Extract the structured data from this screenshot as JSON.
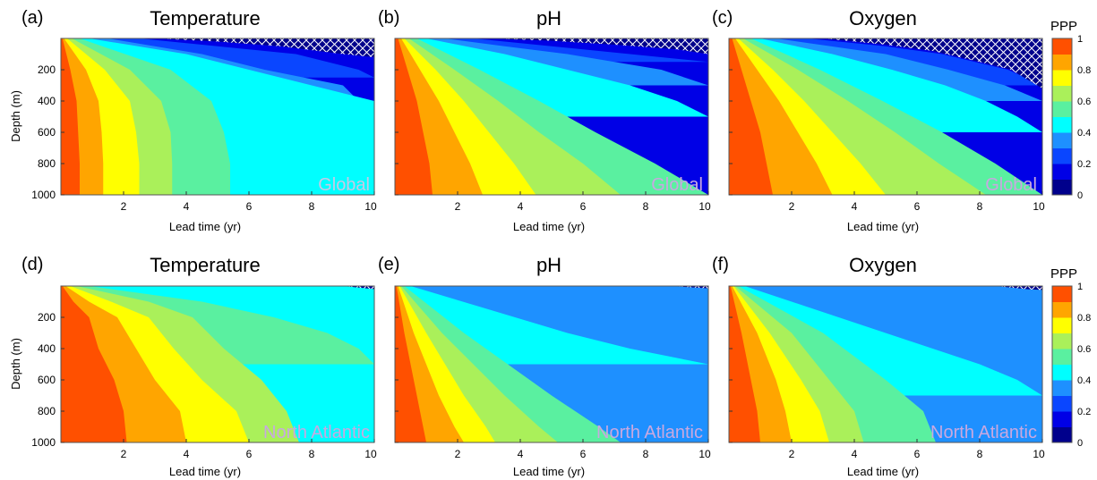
{
  "figure": {
    "colorbar": {
      "label": "PPP",
      "ticks": [
        "1",
        "0.8",
        "0.6",
        "0.4",
        "0.2",
        "0"
      ],
      "levels": [
        0,
        0.1,
        0.2,
        0.3,
        0.4,
        0.5,
        0.6,
        0.7,
        0.8,
        0.9,
        1.0
      ],
      "colors": [
        "#00008c",
        "#0000e6",
        "#0a46ff",
        "#1e90ff",
        "#00ffff",
        "#5af0a0",
        "#aaf05a",
        "#ffff00",
        "#ffa500",
        "#ff5000"
      ],
      "hatch_color": "#ffffff",
      "hatch_bg": "#00008c"
    },
    "xlabel": "Lead time (yr)",
    "ylabel": "Depth (m)",
    "xticks": [
      "2",
      "4",
      "6",
      "8",
      "10"
    ],
    "yticks": [
      "200",
      "400",
      "600",
      "800",
      "1000"
    ]
  },
  "chart_data": [
    {
      "type": "heatmap",
      "panel": "(a)",
      "title": "Temperature",
      "region": "Global",
      "xlabel": "Lead time (yr)",
      "ylabel": "Depth (m)",
      "xlim": [
        0,
        10
      ],
      "ylim": [
        1000,
        0
      ],
      "contour_boundaries": [
        {
          "level": 0.9,
          "depth": [
            0,
            200,
            400,
            600,
            800,
            1000
          ],
          "lead_time": [
            0.05,
            0.3,
            0.5,
            0.55,
            0.6,
            0.6
          ]
        },
        {
          "level": 0.8,
          "depth": [
            0,
            200,
            400,
            600,
            800,
            1000
          ],
          "lead_time": [
            0.1,
            0.8,
            1.2,
            1.3,
            1.35,
            1.35
          ]
        },
        {
          "level": 0.7,
          "depth": [
            0,
            200,
            400,
            600,
            800,
            1000
          ],
          "lead_time": [
            0.2,
            1.4,
            2.2,
            2.4,
            2.5,
            2.5
          ]
        },
        {
          "level": 0.6,
          "depth": [
            0,
            200,
            400,
            600,
            800,
            1000
          ],
          "lead_time": [
            0.35,
            2.2,
            3.2,
            3.5,
            3.55,
            3.55
          ]
        },
        {
          "level": 0.5,
          "depth": [
            0,
            200,
            400,
            600,
            800,
            1000
          ],
          "lead_time": [
            0.6,
            3.5,
            4.8,
            5.2,
            5.4,
            5.4
          ]
        },
        {
          "level": 0.4,
          "depth": [
            0,
            100,
            200,
            400,
            600,
            800,
            1000
          ],
          "lead_time": [
            0.9,
            4.0,
            6.0,
            10.0,
            10.0,
            10.0,
            10.0
          ]
        },
        {
          "level": 0.3,
          "depth": [
            0,
            100,
            200,
            300,
            500
          ],
          "lead_time": [
            1.5,
            4.5,
            6.5,
            9.0,
            10.0
          ]
        },
        {
          "level": 0.2,
          "depth": [
            0,
            50,
            100,
            200,
            250
          ],
          "lead_time": [
            2.5,
            5.0,
            7.5,
            9.5,
            10.0
          ]
        }
      ],
      "hatched_region": {
        "depth": [
          0,
          20,
          50,
          100,
          120
        ],
        "lead_time": [
          3.0,
          5.0,
          7.0,
          9.0,
          10.0
        ]
      }
    },
    {
      "type": "heatmap",
      "panel": "(b)",
      "title": "pH",
      "region": "Global",
      "xlabel": "Lead time (yr)",
      "ylabel": "Depth (m)",
      "xlim": [
        0,
        10
      ],
      "ylim": [
        1000,
        0
      ],
      "contour_boundaries": [
        {
          "level": 0.9,
          "depth": [
            0,
            200,
            400,
            600,
            800,
            1000
          ],
          "lead_time": [
            0.1,
            0.4,
            0.7,
            0.9,
            1.1,
            1.2
          ]
        },
        {
          "level": 0.8,
          "depth": [
            0,
            200,
            400,
            600,
            800,
            1000
          ],
          "lead_time": [
            0.2,
            0.8,
            1.4,
            1.9,
            2.4,
            2.8
          ]
        },
        {
          "level": 0.7,
          "depth": [
            0,
            200,
            400,
            600,
            800,
            1000
          ],
          "lead_time": [
            0.3,
            1.3,
            2.2,
            3.0,
            3.8,
            4.5
          ]
        },
        {
          "level": 0.6,
          "depth": [
            0,
            200,
            400,
            600,
            800,
            1000
          ],
          "lead_time": [
            0.45,
            1.9,
            3.3,
            4.6,
            6.0,
            7.2
          ]
        },
        {
          "level": 0.5,
          "depth": [
            0,
            200,
            400,
            600,
            800,
            1000
          ],
          "lead_time": [
            0.7,
            2.7,
            4.6,
            6.4,
            8.3,
            10.0
          ]
        },
        {
          "level": 0.4,
          "depth": [
            0,
            100,
            200,
            300,
            400,
            500
          ],
          "lead_time": [
            1.0,
            3.5,
            5.5,
            7.5,
            9.0,
            10.0
          ]
        },
        {
          "level": 0.3,
          "depth": [
            0,
            50,
            100,
            150,
            200,
            300
          ],
          "lead_time": [
            1.6,
            3.5,
            5.5,
            7.0,
            8.5,
            10.0
          ]
        },
        {
          "level": 0.2,
          "depth": [
            0,
            50,
            100,
            150
          ],
          "lead_time": [
            2.5,
            5.0,
            7.5,
            10.0
          ]
        }
      ],
      "hatched_region": {
        "depth": [
          0,
          15,
          40,
          70,
          100
        ],
        "lead_time": [
          3.0,
          5.0,
          7.0,
          9.0,
          10.0
        ]
      }
    },
    {
      "type": "heatmap",
      "panel": "(c)",
      "title": "Oxygen",
      "region": "Global",
      "xlabel": "Lead time (yr)",
      "ylabel": "Depth (m)",
      "xlim": [
        0,
        10
      ],
      "ylim": [
        1000,
        0
      ],
      "contour_boundaries": [
        {
          "level": 0.9,
          "depth": [
            0,
            200,
            400,
            600,
            800,
            1000
          ],
          "lead_time": [
            0.1,
            0.4,
            0.7,
            1.0,
            1.2,
            1.4
          ]
        },
        {
          "level": 0.8,
          "depth": [
            0,
            200,
            400,
            600,
            800,
            1000
          ],
          "lead_time": [
            0.2,
            0.9,
            1.6,
            2.2,
            2.8,
            3.3
          ]
        },
        {
          "level": 0.7,
          "depth": [
            0,
            200,
            400,
            600,
            800,
            1000
          ],
          "lead_time": [
            0.3,
            1.4,
            2.4,
            3.3,
            4.2,
            5.0
          ]
        },
        {
          "level": 0.6,
          "depth": [
            0,
            200,
            400,
            600,
            800,
            1000
          ],
          "lead_time": [
            0.45,
            2.2,
            3.8,
            5.3,
            6.7,
            8.2
          ]
        },
        {
          "level": 0.5,
          "depth": [
            0,
            200,
            400,
            600,
            800,
            1000
          ],
          "lead_time": [
            0.7,
            2.9,
            4.9,
            6.8,
            8.5,
            10.0
          ]
        },
        {
          "level": 0.4,
          "depth": [
            0,
            100,
            200,
            300,
            400,
            500,
            600
          ],
          "lead_time": [
            1.0,
            3.3,
            5.2,
            6.9,
            8.2,
            9.2,
            10.0
          ]
        },
        {
          "level": 0.3,
          "depth": [
            0,
            100,
            200,
            300,
            400
          ],
          "lead_time": [
            1.5,
            5.0,
            7.0,
            8.8,
            10.0
          ]
        },
        {
          "level": 0.2,
          "depth": [
            0,
            50,
            100,
            200,
            300
          ],
          "lead_time": [
            2.5,
            5.0,
            6.8,
            8.9,
            10.0
          ]
        }
      ],
      "hatched_region": {
        "depth": [
          0,
          40,
          80,
          150,
          200,
          320
        ],
        "lead_time": [
          3.0,
          5.0,
          6.5,
          8.0,
          9.0,
          10.0
        ]
      }
    },
    {
      "type": "heatmap",
      "panel": "(d)",
      "title": "Temperature",
      "region": "North Atlantic",
      "xlabel": "Lead time (yr)",
      "ylabel": "Depth (m)",
      "xlim": [
        0,
        10
      ],
      "ylim": [
        1000,
        0
      ],
      "contour_boundaries": [
        {
          "level": 0.9,
          "depth": [
            0,
            100,
            200,
            400,
            600,
            800,
            1000
          ],
          "lead_time": [
            0.05,
            0.4,
            0.9,
            1.2,
            1.7,
            2.0,
            2.1
          ]
        },
        {
          "level": 0.8,
          "depth": [
            0,
            100,
            200,
            400,
            600,
            800,
            1000
          ],
          "lead_time": [
            0.15,
            0.9,
            1.8,
            2.4,
            3.0,
            3.8,
            4.0
          ]
        },
        {
          "level": 0.7,
          "depth": [
            0,
            100,
            200,
            400,
            600,
            800,
            1000
          ],
          "lead_time": [
            0.3,
            1.6,
            2.8,
            3.6,
            4.5,
            5.6,
            6.0
          ]
        },
        {
          "level": 0.6,
          "depth": [
            0,
            100,
            200,
            400,
            600,
            800,
            1000
          ],
          "lead_time": [
            0.5,
            2.8,
            4.2,
            5.2,
            6.4,
            7.2,
            7.6
          ]
        },
        {
          "level": 0.5,
          "depth": [
            0,
            100,
            200,
            300,
            400,
            500
          ],
          "lead_time": [
            0.9,
            4.5,
            6.8,
            8.5,
            9.5,
            10.0
          ]
        }
      ],
      "hatched_region": {
        "depth": [
          0,
          20
        ],
        "lead_time": [
          9.0,
          10.0
        ]
      }
    },
    {
      "type": "heatmap",
      "panel": "(e)",
      "title": "pH",
      "region": "North Atlantic",
      "xlabel": "Lead time (yr)",
      "ylabel": "Depth (m)",
      "xlim": [
        0,
        10
      ],
      "ylim": [
        1000,
        0
      ],
      "contour_boundaries": [
        {
          "level": 0.9,
          "depth": [
            0,
            300,
            500,
            700,
            900,
            1000
          ],
          "lead_time": [
            0.05,
            0.3,
            0.5,
            0.7,
            0.9,
            1.0
          ]
        },
        {
          "level": 0.8,
          "depth": [
            0,
            300,
            500,
            700,
            900,
            1000
          ],
          "lead_time": [
            0.1,
            0.6,
            1.0,
            1.4,
            1.9,
            2.2
          ]
        },
        {
          "level": 0.7,
          "depth": [
            0,
            300,
            500,
            700,
            900,
            1000
          ],
          "lead_time": [
            0.15,
            1.0,
            1.6,
            2.2,
            2.9,
            3.2
          ]
        },
        {
          "level": 0.6,
          "depth": [
            0,
            300,
            500,
            700,
            900,
            1000
          ],
          "lead_time": [
            0.2,
            1.5,
            2.5,
            3.5,
            4.6,
            5.2
          ]
        },
        {
          "level": 0.5,
          "depth": [
            0,
            300,
            500,
            700,
            900,
            1000
          ],
          "lead_time": [
            0.3,
            2.2,
            3.6,
            5.0,
            6.5,
            7.2
          ]
        },
        {
          "level": 0.4,
          "depth": [
            0,
            150,
            300,
            400,
            500
          ],
          "lead_time": [
            0.5,
            3.0,
            5.5,
            7.5,
            10.0
          ]
        }
      ],
      "hatched_region": {
        "depth": [
          0,
          15
        ],
        "lead_time": [
          8.8,
          10.0
        ]
      }
    },
    {
      "type": "heatmap",
      "panel": "(f)",
      "title": "Oxygen",
      "region": "North Atlantic",
      "xlabel": "Lead time (yr)",
      "ylabel": "Depth (m)",
      "xlim": [
        0,
        10
      ],
      "ylim": [
        1000,
        0
      ],
      "contour_boundaries": [
        {
          "level": 0.9,
          "depth": [
            0,
            300,
            600,
            800,
            1000
          ],
          "lead_time": [
            0.05,
            0.4,
            0.7,
            0.9,
            1.0
          ]
        },
        {
          "level": 0.8,
          "depth": [
            0,
            300,
            600,
            800,
            1000
          ],
          "lead_time": [
            0.1,
            0.9,
            1.5,
            1.8,
            2.0
          ]
        },
        {
          "level": 0.7,
          "depth": [
            0,
            300,
            600,
            800,
            1000
          ],
          "lead_time": [
            0.15,
            1.3,
            2.3,
            2.9,
            3.2
          ]
        },
        {
          "level": 0.6,
          "depth": [
            0,
            300,
            600,
            800,
            1000
          ],
          "lead_time": [
            0.2,
            2.0,
            3.2,
            4.0,
            4.3
          ]
        },
        {
          "level": 0.5,
          "depth": [
            0,
            300,
            600,
            800,
            1000
          ],
          "lead_time": [
            0.3,
            3.0,
            5.0,
            6.2,
            6.6
          ]
        },
        {
          "level": 0.4,
          "depth": [
            0,
            200,
            400,
            500,
            600,
            700
          ],
          "lead_time": [
            0.5,
            3.5,
            6.5,
            8.0,
            9.2,
            10.0
          ]
        }
      ],
      "hatched_region": {
        "depth": [
          0,
          20,
          25
        ],
        "lead_time": [
          8.5,
          9.5,
          10.0
        ]
      }
    }
  ]
}
